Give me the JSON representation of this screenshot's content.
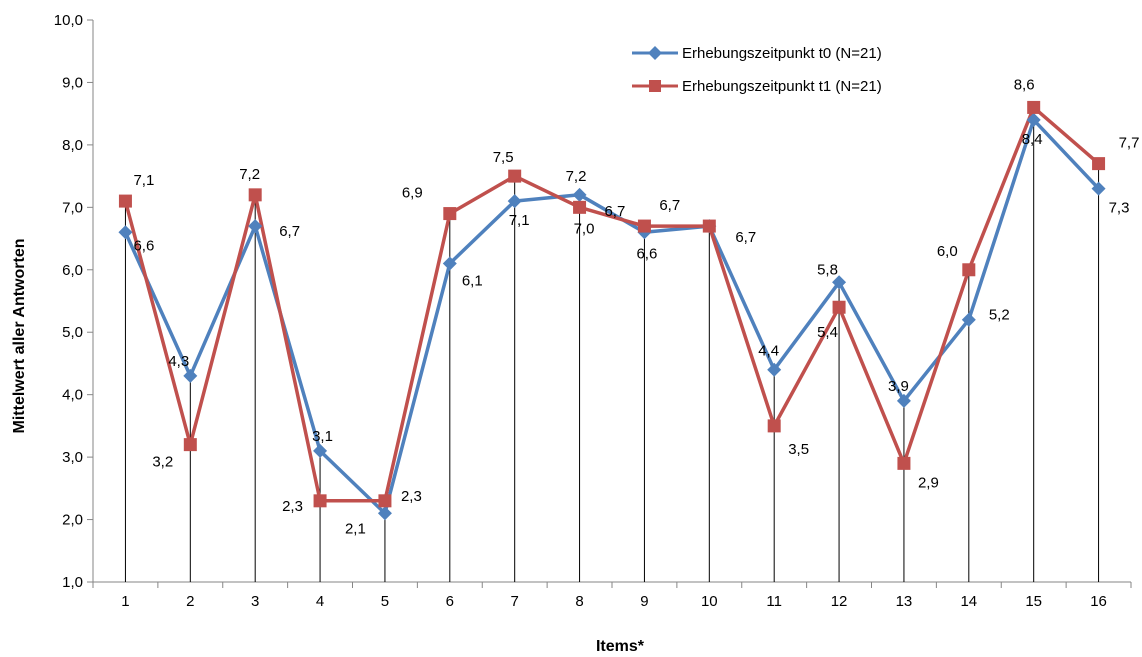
{
  "chart_data": {
    "type": "line",
    "xlabel": "Items*",
    "ylabel": "Mittelwert aller Antworten",
    "ylim": [
      1,
      10
    ],
    "yticks": [
      "1,0",
      "2,0",
      "3,0",
      "4,0",
      "5,0",
      "6,0",
      "7,0",
      "8,0",
      "9,0",
      "10,0"
    ],
    "categories": [
      "1",
      "2",
      "3",
      "4",
      "5",
      "6",
      "7",
      "8",
      "9",
      "10",
      "11",
      "12",
      "13",
      "14",
      "15",
      "16"
    ],
    "legend_position": "top-right",
    "drop_lines": true,
    "series": [
      {
        "name": "Erhebungszeitpunkt t0 (N=21)",
        "color": "#4f81bd",
        "marker": "diamond",
        "values": [
          6.6,
          4.3,
          6.7,
          3.1,
          2.1,
          6.1,
          7.1,
          7.2,
          6.6,
          6.7,
          4.4,
          5.8,
          3.9,
          5.2,
          8.4,
          7.3
        ],
        "labels": [
          "6,6",
          "4,3",
          "6,7",
          "3,1",
          "2,1",
          "6,1",
          "7,1",
          "7,2",
          "6,6",
          "6,7",
          "4,4",
          "5,8",
          "3,9",
          "5,2",
          "8,4",
          "7,3"
        ]
      },
      {
        "name": "Erhebungszeitpunkt t1 (N=21)",
        "color": "#c0504d",
        "marker": "square",
        "values": [
          7.1,
          3.2,
          7.2,
          2.3,
          2.3,
          6.9,
          7.5,
          7.0,
          6.7,
          6.7,
          3.5,
          5.4,
          2.9,
          6.0,
          8.6,
          7.7
        ],
        "labels": [
          "7,1",
          "3,2",
          "7,2",
          "2,3",
          "2,3",
          "6,9",
          "7,5",
          "7,0",
          "6,7",
          "6,7",
          "3,5",
          "5,4",
          "2,9",
          "6,0",
          "8,6",
          "7,7"
        ]
      }
    ]
  }
}
